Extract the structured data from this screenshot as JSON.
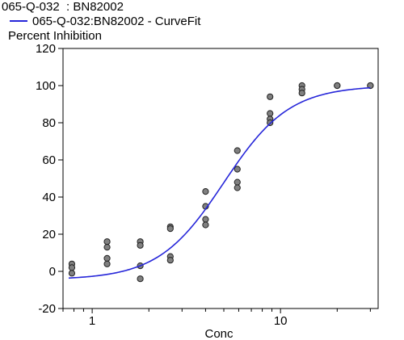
{
  "chart_data": {
    "type": "scatter",
    "title": "065-Q-032  : BN82002",
    "legend": {
      "placement": "top-left",
      "entries": [
        {
          "label": "065-Q-032:BN82002 - CurveFit",
          "color": "#2626d9",
          "marker": "line"
        }
      ]
    },
    "ylabel": "Percent Inhibition",
    "xlabel": "Conc",
    "xscale": "log",
    "xlim": [
      0.7,
      33
    ],
    "ylim": [
      -20,
      120
    ],
    "yticks": [
      -20,
      0,
      20,
      40,
      60,
      80,
      100,
      120
    ],
    "xticks": [
      1,
      10
    ],
    "grid": false,
    "series": [
      {
        "kind": "points",
        "marker_color": "#808080",
        "points": [
          {
            "x": 0.78,
            "y": 4
          },
          {
            "x": 0.78,
            "y": 2
          },
          {
            "x": 0.78,
            "y": -1
          },
          {
            "x": 1.2,
            "y": 16
          },
          {
            "x": 1.2,
            "y": 13
          },
          {
            "x": 1.2,
            "y": 7
          },
          {
            "x": 1.2,
            "y": 4
          },
          {
            "x": 1.8,
            "y": 16
          },
          {
            "x": 1.8,
            "y": 14
          },
          {
            "x": 1.8,
            "y": 3
          },
          {
            "x": 1.8,
            "y": -4
          },
          {
            "x": 2.6,
            "y": 24
          },
          {
            "x": 2.6,
            "y": 23
          },
          {
            "x": 2.6,
            "y": 8
          },
          {
            "x": 2.6,
            "y": 6
          },
          {
            "x": 4.0,
            "y": 43
          },
          {
            "x": 4.0,
            "y": 35
          },
          {
            "x": 4.0,
            "y": 28
          },
          {
            "x": 4.0,
            "y": 25
          },
          {
            "x": 5.9,
            "y": 65
          },
          {
            "x": 5.9,
            "y": 55
          },
          {
            "x": 5.9,
            "y": 48
          },
          {
            "x": 5.9,
            "y": 45
          },
          {
            "x": 8.8,
            "y": 94
          },
          {
            "x": 8.8,
            "y": 85
          },
          {
            "x": 8.8,
            "y": 82
          },
          {
            "x": 8.8,
            "y": 80
          },
          {
            "x": 13,
            "y": 100
          },
          {
            "x": 13,
            "y": 98
          },
          {
            "x": 13,
            "y": 96
          },
          {
            "x": 20,
            "y": 100
          },
          {
            "x": 20,
            "y": 100
          },
          {
            "x": 30,
            "y": 100
          },
          {
            "x": 30,
            "y": 100
          }
        ]
      },
      {
        "kind": "curve",
        "line_color": "#2626d9",
        "fit": {
          "bottom": -4.5,
          "top": 100,
          "ec50": 5.0,
          "hill": 2.5
        },
        "x_range": [
          0.75,
          30
        ]
      }
    ]
  }
}
